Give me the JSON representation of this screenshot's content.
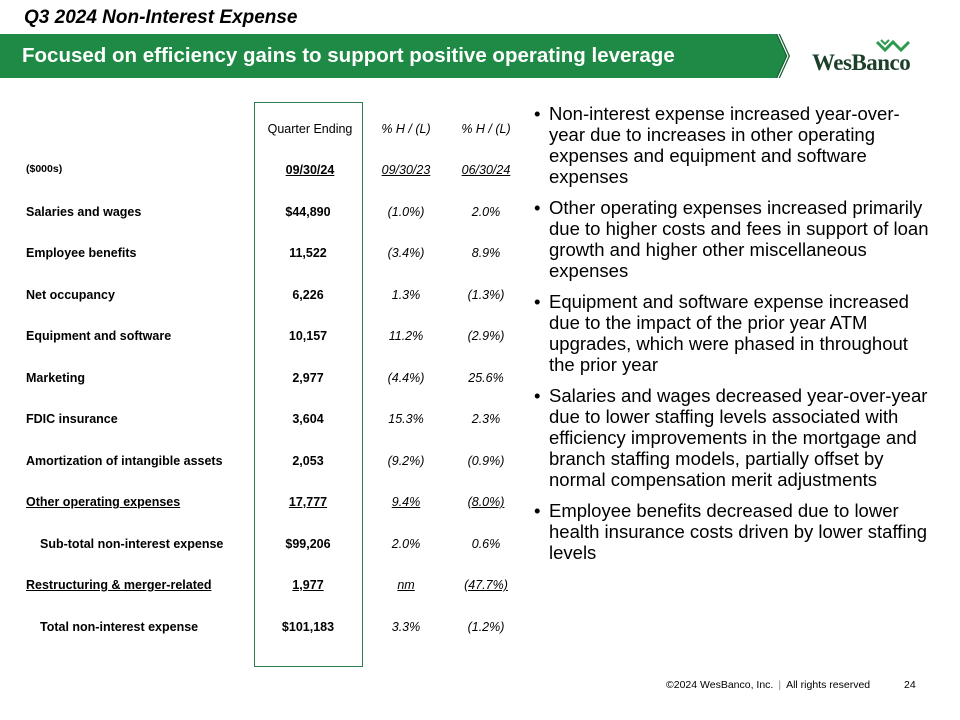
{
  "slide": {
    "title": "Q3 2024 Non-Interest Expense",
    "banner": "Focused on efficiency gains to support positive operating leverage",
    "logo_text": "WesBanco",
    "colors": {
      "banner_green": "#1e8a45",
      "banner_dark": "#155f31",
      "box_border": "#2e7d4f",
      "logo_text": "#1d3f2a"
    }
  },
  "table": {
    "header_top": {
      "col1": "Quarter Ending",
      "col2": "% H / (L)",
      "col3": "% H / (L)"
    },
    "header_sub": {
      "label": "($000s)",
      "col1": "09/30/24",
      "col2": "09/30/23",
      "col3": "06/30/24"
    },
    "rows": [
      {
        "label": "Salaries and wages",
        "q": "$44,890",
        "yoy": "(1.0%)",
        "qoq": "2.0%"
      },
      {
        "label": "Employee benefits",
        "q": "11,522",
        "yoy": "(3.4%)",
        "qoq": "8.9%"
      },
      {
        "label": "Net occupancy",
        "q": "6,226",
        "yoy": "1.3%",
        "qoq": "(1.3%)"
      },
      {
        "label": "Equipment and software",
        "q": "10,157",
        "yoy": "11.2%",
        "qoq": "(2.9%)"
      },
      {
        "label": "Marketing",
        "q": "2,977",
        "yoy": "(4.4%)",
        "qoq": "25.6%"
      },
      {
        "label": "FDIC insurance",
        "q": "3,604",
        "yoy": "15.3%",
        "qoq": "2.3%"
      },
      {
        "label": "Amortization of intangible assets",
        "q": "2,053",
        "yoy": "(9.2%)",
        "qoq": "(0.9%)"
      },
      {
        "label": "Other operating expenses",
        "q": "17,777",
        "yoy": "9.4%",
        "qoq": "(8.0%)"
      },
      {
        "label": "Sub-total non-interest expense",
        "q": "$99,206",
        "yoy": "2.0%",
        "qoq": "0.6%"
      },
      {
        "label": "Restructuring & merger-related",
        "q": "1,977",
        "yoy": "nm",
        "qoq": "(47.7%)"
      },
      {
        "label": "Total non-interest expense",
        "q": "$101,183",
        "yoy": "3.3%",
        "qoq": "(1.2%)"
      }
    ]
  },
  "bullets": [
    "Non-interest expense increased year-over-year due to increases in other operating expenses and equipment  and software expenses",
    "Other operating expenses increased primarily due to higher costs and fees in support of loan growth and higher other miscellaneous  expenses",
    "Equipment  and software expense increased due to the impact of the prior year ATM  upgrades,  which were phased in throughout  the prior year",
    "Salaries and wages decreased year-over-year due to lower staffing levels associated with efficiency improvements in the mortgage  and branch  staffing models,  partially offset by normal compensation  merit adjustments",
    "Employee  benefits decreased due to lower health insurance costs driven by lower staffing levels"
  ],
  "footer": {
    "copyright": "©2024 WesBanco, Inc.",
    "separator": "|",
    "rights": "All rights reserved",
    "page": "24"
  }
}
